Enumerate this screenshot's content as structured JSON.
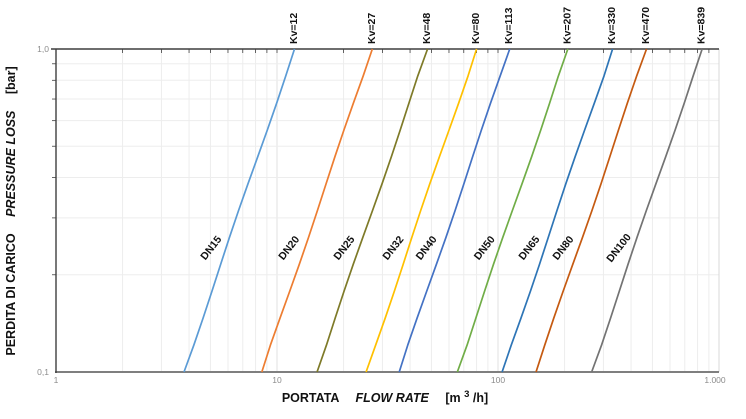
{
  "chart_data": {
    "type": "line",
    "description": "Valve sizing diagram: pressure loss vs flow rate on log-log axes, one straight line per valve size (DN), each labelled with its flow coefficient Kv. Each line follows pressure_loss = (flow_rate / Kv)^2 between 0.1 and 1.0 bar.",
    "grid": true,
    "legend_position": "labels-on-lines",
    "x_axis": {
      "label_it": "PORTATA",
      "label_en": "FLOW RATE",
      "unit": "[m3/h]",
      "unit_pre": "[m",
      "unit_sup": "3",
      "unit_post": "/h]",
      "scale": "log",
      "min": 1,
      "max": 1000,
      "tick_values": [
        1,
        10,
        100,
        1000
      ],
      "tick_labels": [
        "1",
        "10",
        "100",
        "1.000"
      ]
    },
    "y_axis": {
      "label_it": "PERDITA DI CARICO",
      "label_en": "PRESSURE LOSS",
      "unit": "[bar]",
      "scale": "log",
      "min": 0.1,
      "max": 1.0,
      "tick_values": [
        1.0,
        0.1
      ],
      "tick_labels": [
        "1,0",
        "0,1"
      ]
    },
    "series": [
      {
        "dn": "DN15",
        "kv": 12,
        "kv_label": "Kv=12",
        "color": "#5B9BD5",
        "q_at_0_1bar": 3.8,
        "q_at_1_0bar": 12
      },
      {
        "dn": "DN20",
        "kv": 27,
        "kv_label": "Kv=27",
        "color": "#ED7D31",
        "q_at_0_1bar": 8.5,
        "q_at_1_0bar": 27
      },
      {
        "dn": "DN25",
        "kv": 48,
        "kv_label": "Kv=48",
        "color": "#7E7A28",
        "q_at_0_1bar": 15.2,
        "q_at_1_0bar": 48
      },
      {
        "dn": "DN32",
        "kv": 80,
        "kv_label": "Kv=80",
        "color": "#FFC000",
        "q_at_0_1bar": 25.3,
        "q_at_1_0bar": 80
      },
      {
        "dn": "DN40",
        "kv": 113,
        "kv_label": "Kv=113",
        "color": "#4472C4",
        "q_at_0_1bar": 35.7,
        "q_at_1_0bar": 113
      },
      {
        "dn": "DN50",
        "kv": 207,
        "kv_label": "Kv=207",
        "color": "#70AD47",
        "q_at_0_1bar": 65.5,
        "q_at_1_0bar": 207
      },
      {
        "dn": "DN65",
        "kv": 330,
        "kv_label": "Kv=330",
        "color": "#2E75B6",
        "q_at_0_1bar": 104.4,
        "q_at_1_0bar": 330
      },
      {
        "dn": "DN80",
        "kv": 470,
        "kv_label": "Kv=470",
        "color": "#C55A11",
        "q_at_0_1bar": 148.6,
        "q_at_1_0bar": 470
      },
      {
        "dn": "DN100",
        "kv": 839,
        "kv_label": "Kv=839",
        "color": "#737373",
        "q_at_0_1bar": 265.3,
        "q_at_1_0bar": 839
      }
    ],
    "colors": {
      "grid_minor": "#ededed",
      "grid_major": "#e2e2e2",
      "axis_dark": "#3f3f3f",
      "axis_bottom": "#7f7f7f",
      "axis_right": "#d9d9d9",
      "tick_label": "#8c8c8c",
      "line_label": "#111111"
    }
  }
}
